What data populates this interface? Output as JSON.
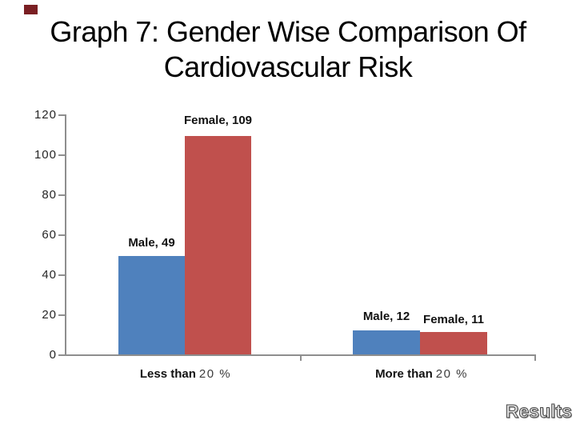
{
  "slide": {
    "title_line1": "Graph 7: Gender Wise Comparison Of",
    "title_line2": "Cardiovascular Risk",
    "results_label": "Results"
  },
  "colors": {
    "male_bar": "#4F81BD",
    "female_bar": "#C0504D",
    "axis": "#8E8E8E",
    "title_text": "#000000",
    "corner_mark": "#7A1F23"
  },
  "chart_data": {
    "type": "bar",
    "title": "Gender Wise Comparison Of Cardiovascular Risk",
    "categories": [
      "Less than 20 %",
      "More than 20 %"
    ],
    "category_parts": [
      {
        "bold": "Less than",
        "tail": "20 %"
      },
      {
        "bold": "More than",
        "tail": "20 %"
      }
    ],
    "series": [
      {
        "name": "Male",
        "color": "#4F81BD",
        "values": [
          49,
          12
        ]
      },
      {
        "name": "Female",
        "color": "#C0504D",
        "values": [
          109,
          11
        ]
      }
    ],
    "point_labels": [
      [
        "Male, 49",
        "Female, 109"
      ],
      [
        "Male, 12",
        "Female, 11"
      ]
    ],
    "ylim": [
      0,
      120
    ],
    "y_ticks": [
      0,
      20,
      40,
      60,
      80,
      100,
      120
    ],
    "grid": false,
    "legend": "none",
    "xlabel": "",
    "ylabel": ""
  }
}
